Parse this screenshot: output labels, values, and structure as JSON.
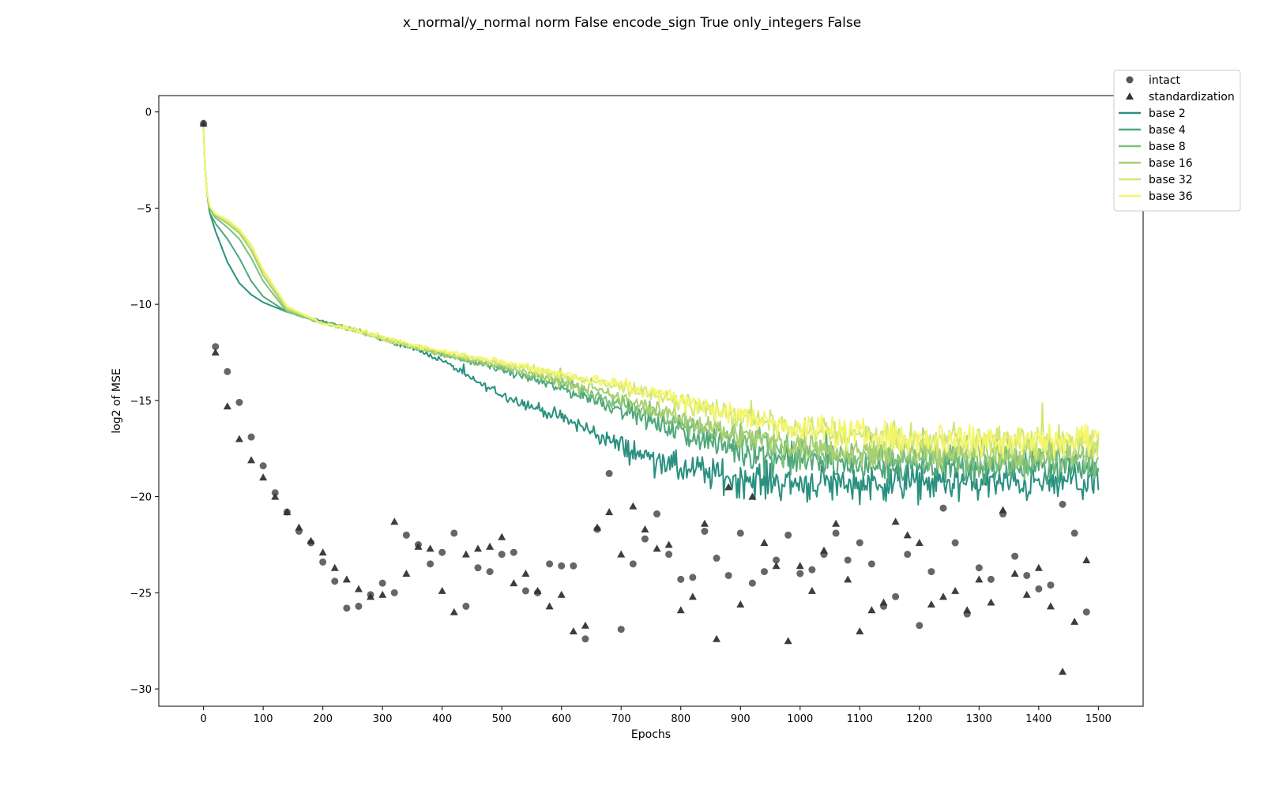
{
  "chart_data": {
    "type": "line",
    "title": "x_normal/y_normal norm False encode_sign True only_integers False",
    "xlabel": "Epochs",
    "ylabel": "log2 of MSE",
    "xlim": [
      -75,
      1575
    ],
    "ylim": [
      -30.9,
      0.85
    ],
    "xticks": [
      0,
      100,
      200,
      300,
      400,
      500,
      600,
      700,
      800,
      900,
      1000,
      1100,
      1200,
      1300,
      1400,
      1500
    ],
    "yticks": [
      0,
      -5,
      -10,
      -15,
      -20,
      -25,
      -30
    ],
    "ytick_labels": [
      "0",
      "−5",
      "−10",
      "−15",
      "−20",
      "−25",
      "−30"
    ],
    "grid": false,
    "legend_placement": "top-right",
    "series": [
      {
        "name": "intact",
        "kind": "scatter",
        "marker": "circle",
        "color": "#555555",
        "x": [
          0,
          20,
          40,
          60,
          80,
          100,
          120,
          140,
          160,
          180,
          200,
          220,
          240,
          260,
          280,
          300,
          320,
          340,
          360,
          380,
          400,
          420,
          440,
          460,
          480,
          500,
          520,
          540,
          560,
          580,
          600,
          620,
          640,
          660,
          680,
          700,
          720,
          740,
          760,
          780,
          800,
          820,
          840,
          860,
          880,
          900,
          920,
          940,
          960,
          980,
          1000,
          1020,
          1040,
          1060,
          1080,
          1100,
          1120,
          1140,
          1160,
          1180,
          1200,
          1220,
          1240,
          1260,
          1280,
          1300,
          1320,
          1340,
          1360,
          1380,
          1400,
          1420,
          1440,
          1460,
          1480
        ],
        "y": [
          -0.6,
          -12.2,
          -13.5,
          -15.1,
          -16.9,
          -18.4,
          -19.8,
          -20.8,
          -21.8,
          -22.4,
          -23.4,
          -24.4,
          -25.8,
          -25.7,
          -25.1,
          -24.5,
          -25.0,
          -22.0,
          -22.5,
          -23.5,
          -22.9,
          -21.9,
          -25.7,
          -23.7,
          -23.9,
          -23.0,
          -22.9,
          -24.9,
          -25.0,
          -23.5,
          -23.6,
          -23.6,
          -27.4,
          -21.7,
          -18.8,
          -26.9,
          -23.5,
          -22.2,
          -20.9,
          -23.0,
          -24.3,
          -24.2,
          -21.8,
          -23.2,
          -24.1,
          -21.9,
          -24.5,
          -23.9,
          -23.3,
          -22.0,
          -24.0,
          -23.8,
          -23.0,
          -21.9,
          -23.3,
          -22.4,
          -23.5,
          -25.7,
          -25.2,
          -23.0,
          -26.7,
          -23.9,
          -20.6,
          -22.4,
          -26.1,
          -23.7,
          -24.3,
          -20.9,
          -23.1,
          -24.1,
          -24.8,
          -24.6,
          -20.4,
          -21.9,
          -26.0
        ]
      },
      {
        "name": "standardization",
        "kind": "scatter",
        "marker": "triangle",
        "color": "#333333",
        "x": [
          0,
          20,
          40,
          60,
          80,
          100,
          120,
          140,
          160,
          180,
          200,
          220,
          240,
          260,
          280,
          300,
          320,
          340,
          360,
          380,
          400,
          420,
          440,
          460,
          480,
          500,
          520,
          540,
          560,
          580,
          600,
          620,
          640,
          660,
          680,
          700,
          720,
          740,
          760,
          780,
          800,
          820,
          840,
          860,
          880,
          900,
          920,
          940,
          960,
          980,
          1000,
          1020,
          1040,
          1060,
          1080,
          1100,
          1120,
          1140,
          1160,
          1180,
          1200,
          1220,
          1240,
          1260,
          1280,
          1300,
          1320,
          1340,
          1360,
          1380,
          1400,
          1420,
          1440,
          1460,
          1480
        ],
        "y": [
          -0.6,
          -12.5,
          -15.3,
          -17.0,
          -18.1,
          -19.0,
          -20.0,
          -20.8,
          -21.6,
          -22.3,
          -22.9,
          -23.7,
          -24.3,
          -24.8,
          -25.2,
          -25.1,
          -21.3,
          -24.0,
          -22.6,
          -22.7,
          -24.9,
          -26.0,
          -23.0,
          -22.7,
          -22.6,
          -22.1,
          -24.5,
          -24.0,
          -24.9,
          -25.7,
          -25.1,
          -27.0,
          -26.7,
          -21.6,
          -20.8,
          -23.0,
          -20.5,
          -21.7,
          -22.7,
          -22.5,
          -25.9,
          -25.2,
          -21.4,
          -27.4,
          -19.5,
          -25.6,
          -20.0,
          -22.4,
          -23.6,
          -27.5,
          -23.6,
          -24.9,
          -22.8,
          -21.4,
          -24.3,
          -27.0,
          -25.9,
          -25.5,
          -21.3,
          -22.0,
          -22.4,
          -25.6,
          -25.2,
          -24.9,
          -25.9,
          -24.3,
          -25.5,
          -20.7,
          -24.0,
          -25.1,
          -23.7,
          -25.7,
          -29.1,
          -26.5,
          -23.3
        ]
      },
      {
        "name": "base 2",
        "kind": "line",
        "color": "#2a9080",
        "x": [
          0,
          2,
          5,
          10,
          20,
          40,
          60,
          80,
          100,
          140,
          200,
          250,
          300,
          350,
          400,
          450,
          500,
          550,
          600,
          650,
          700,
          750,
          800,
          850,
          900,
          950,
          1000,
          1050,
          1100,
          1150,
          1200,
          1250,
          1300,
          1350,
          1400,
          1450,
          1500
        ],
        "y": [
          -0.7,
          -2.5,
          -4.0,
          -5.2,
          -6.2,
          -7.8,
          -8.9,
          -9.5,
          -9.9,
          -10.4,
          -10.9,
          -11.3,
          -11.8,
          -12.3,
          -12.9,
          -13.9,
          -14.7,
          -15.3,
          -15.9,
          -16.6,
          -17.4,
          -18.0,
          -18.6,
          -18.8,
          -19.1,
          -19.2,
          -19.3,
          -19.3,
          -19.3,
          -19.3,
          -19.3,
          -19.3,
          -19.3,
          -19.3,
          -19.3,
          -19.3,
          -19.3
        ],
        "noise": [
          0,
          0,
          0,
          0,
          0,
          0,
          0,
          0,
          0,
          0,
          0.05,
          0.1,
          0.1,
          0.1,
          0.1,
          0.15,
          0.2,
          0.25,
          0.3,
          0.4,
          0.5,
          0.6,
          0.7,
          0.75,
          0.8,
          0.8,
          0.8,
          0.8,
          0.8,
          0.8,
          0.8,
          0.8,
          0.8,
          0.8,
          0.8,
          0.8,
          0.8
        ]
      },
      {
        "name": "base 4",
        "kind": "line",
        "color": "#4fa77a",
        "x": [
          0,
          2,
          5,
          10,
          20,
          40,
          60,
          80,
          100,
          140,
          200,
          250,
          300,
          350,
          400,
          450,
          500,
          550,
          600,
          650,
          700,
          750,
          800,
          850,
          900,
          950,
          1000,
          1050,
          1100,
          1150,
          1200,
          1250,
          1300,
          1350,
          1400,
          1450,
          1500
        ],
        "y": [
          -0.7,
          -2.5,
          -4.0,
          -5.2,
          -5.8,
          -6.6,
          -7.6,
          -8.8,
          -9.6,
          -10.4,
          -10.9,
          -11.3,
          -11.8,
          -12.2,
          -12.6,
          -13.0,
          -13.4,
          -13.9,
          -14.4,
          -14.9,
          -15.5,
          -16.1,
          -16.7,
          -17.2,
          -17.6,
          -17.9,
          -18.1,
          -18.3,
          -18.4,
          -18.5,
          -18.5,
          -18.5,
          -18.5,
          -18.5,
          -18.5,
          -18.5,
          -18.5
        ],
        "noise": [
          0,
          0,
          0,
          0,
          0,
          0,
          0,
          0,
          0,
          0,
          0.05,
          0.1,
          0.1,
          0.1,
          0.1,
          0.1,
          0.15,
          0.2,
          0.25,
          0.3,
          0.35,
          0.4,
          0.5,
          0.6,
          0.7,
          0.75,
          0.75,
          0.75,
          0.75,
          0.75,
          0.75,
          0.75,
          0.75,
          0.75,
          0.75,
          0.75,
          0.75
        ]
      },
      {
        "name": "base 8",
        "kind": "line",
        "color": "#7dc07c",
        "x": [
          0,
          2,
          5,
          10,
          20,
          40,
          60,
          80,
          100,
          140,
          200,
          250,
          300,
          350,
          400,
          450,
          500,
          550,
          600,
          650,
          700,
          750,
          800,
          850,
          900,
          950,
          1000,
          1050,
          1100,
          1150,
          1200,
          1250,
          1300,
          1350,
          1400,
          1450,
          1500
        ],
        "y": [
          -0.7,
          -2.5,
          -4.0,
          -5.0,
          -5.5,
          -6.0,
          -6.6,
          -7.6,
          -8.8,
          -10.4,
          -11.0,
          -11.3,
          -11.8,
          -12.2,
          -12.6,
          -13.0,
          -13.3,
          -13.7,
          -14.1,
          -14.6,
          -15.1,
          -15.6,
          -16.1,
          -16.6,
          -17.0,
          -17.3,
          -17.6,
          -17.8,
          -17.9,
          -18.0,
          -18.1,
          -18.1,
          -18.1,
          -18.1,
          -18.1,
          -18.1,
          -18.1
        ],
        "noise": [
          0,
          0,
          0,
          0,
          0,
          0,
          0,
          0,
          0,
          0,
          0.05,
          0.1,
          0.1,
          0.1,
          0.1,
          0.1,
          0.15,
          0.2,
          0.25,
          0.3,
          0.3,
          0.35,
          0.4,
          0.5,
          0.6,
          0.65,
          0.7,
          0.7,
          0.7,
          0.7,
          0.7,
          0.7,
          0.7,
          0.7,
          0.7,
          0.7,
          0.7
        ]
      },
      {
        "name": "base 16",
        "kind": "line",
        "color": "#a8d070",
        "x": [
          0,
          2,
          5,
          10,
          20,
          40,
          60,
          80,
          100,
          140,
          200,
          250,
          300,
          350,
          400,
          450,
          500,
          550,
          600,
          650,
          700,
          750,
          800,
          850,
          900,
          950,
          1000,
          1050,
          1100,
          1150,
          1200,
          1250,
          1300,
          1350,
          1400,
          1450,
          1500
        ],
        "y": [
          -0.7,
          -2.5,
          -4.0,
          -4.9,
          -5.4,
          -5.8,
          -6.3,
          -7.2,
          -8.5,
          -10.3,
          -11.0,
          -11.3,
          -11.8,
          -12.2,
          -12.6,
          -12.9,
          -13.2,
          -13.6,
          -14.0,
          -14.4,
          -14.9,
          -15.4,
          -15.9,
          -16.4,
          -16.8,
          -17.1,
          -17.3,
          -17.5,
          -17.6,
          -17.7,
          -17.7,
          -17.7,
          -17.7,
          -17.7,
          -17.7,
          -17.7,
          -17.7
        ],
        "noise": [
          0,
          0,
          0,
          0,
          0,
          0,
          0,
          0,
          0,
          0,
          0.05,
          0.1,
          0.1,
          0.1,
          0.1,
          0.1,
          0.15,
          0.2,
          0.25,
          0.25,
          0.3,
          0.35,
          0.4,
          0.5,
          0.55,
          0.6,
          0.65,
          0.65,
          0.65,
          0.65,
          0.65,
          0.65,
          0.65,
          0.65,
          0.65,
          0.65,
          0.65
        ]
      },
      {
        "name": "base 32",
        "kind": "line",
        "color": "#d2e674",
        "x": [
          0,
          2,
          5,
          10,
          20,
          40,
          60,
          80,
          100,
          140,
          200,
          250,
          300,
          350,
          400,
          450,
          500,
          550,
          600,
          650,
          700,
          750,
          800,
          850,
          900,
          950,
          1000,
          1050,
          1100,
          1150,
          1200,
          1250,
          1300,
          1350,
          1400,
          1450,
          1500
        ],
        "y": [
          -0.7,
          -2.5,
          -4.0,
          -4.9,
          -5.3,
          -5.7,
          -6.2,
          -7.0,
          -8.3,
          -10.2,
          -11.0,
          -11.3,
          -11.8,
          -12.2,
          -12.5,
          -12.8,
          -13.1,
          -13.4,
          -13.7,
          -14.0,
          -14.3,
          -14.7,
          -15.1,
          -15.5,
          -15.9,
          -16.2,
          -16.5,
          -16.7,
          -16.9,
          -17.0,
          -17.1,
          -17.1,
          -17.1,
          -17.1,
          -17.1,
          -17.1,
          -17.1
        ],
        "noise": [
          0,
          0,
          0,
          0,
          0,
          0,
          0,
          0,
          0,
          0,
          0.05,
          0.1,
          0.1,
          0.1,
          0.1,
          0.1,
          0.15,
          0.2,
          0.2,
          0.25,
          0.3,
          0.35,
          0.4,
          0.45,
          0.5,
          0.55,
          0.6,
          0.65,
          0.65,
          0.7,
          0.7,
          0.7,
          0.7,
          0.7,
          0.7,
          0.7,
          0.7
        ]
      },
      {
        "name": "base 36",
        "kind": "line",
        "color": "#f4f66a",
        "x": [
          0,
          2,
          5,
          10,
          20,
          40,
          60,
          80,
          100,
          140,
          200,
          250,
          300,
          350,
          400,
          450,
          500,
          550,
          600,
          650,
          700,
          750,
          800,
          850,
          900,
          950,
          1000,
          1050,
          1100,
          1150,
          1200,
          1250,
          1300,
          1350,
          1400,
          1450,
          1500
        ],
        "y": [
          -0.7,
          -2.5,
          -4.0,
          -4.9,
          -5.3,
          -5.6,
          -6.1,
          -6.9,
          -8.2,
          -10.1,
          -11.0,
          -11.3,
          -11.7,
          -12.1,
          -12.4,
          -12.7,
          -13.0,
          -13.3,
          -13.6,
          -13.9,
          -14.2,
          -14.6,
          -15.0,
          -15.4,
          -15.8,
          -16.1,
          -16.4,
          -16.6,
          -16.8,
          -16.9,
          -17.0,
          -17.0,
          -17.0,
          -17.0,
          -17.0,
          -17.0,
          -17.0
        ],
        "noise": [
          0,
          0,
          0,
          0,
          0,
          0,
          0,
          0,
          0,
          0,
          0.05,
          0.1,
          0.1,
          0.1,
          0.1,
          0.1,
          0.15,
          0.2,
          0.2,
          0.25,
          0.3,
          0.35,
          0.4,
          0.45,
          0.5,
          0.55,
          0.6,
          0.65,
          0.7,
          0.75,
          0.75,
          0.75,
          0.75,
          0.75,
          0.75,
          0.75,
          0.75
        ]
      }
    ]
  }
}
